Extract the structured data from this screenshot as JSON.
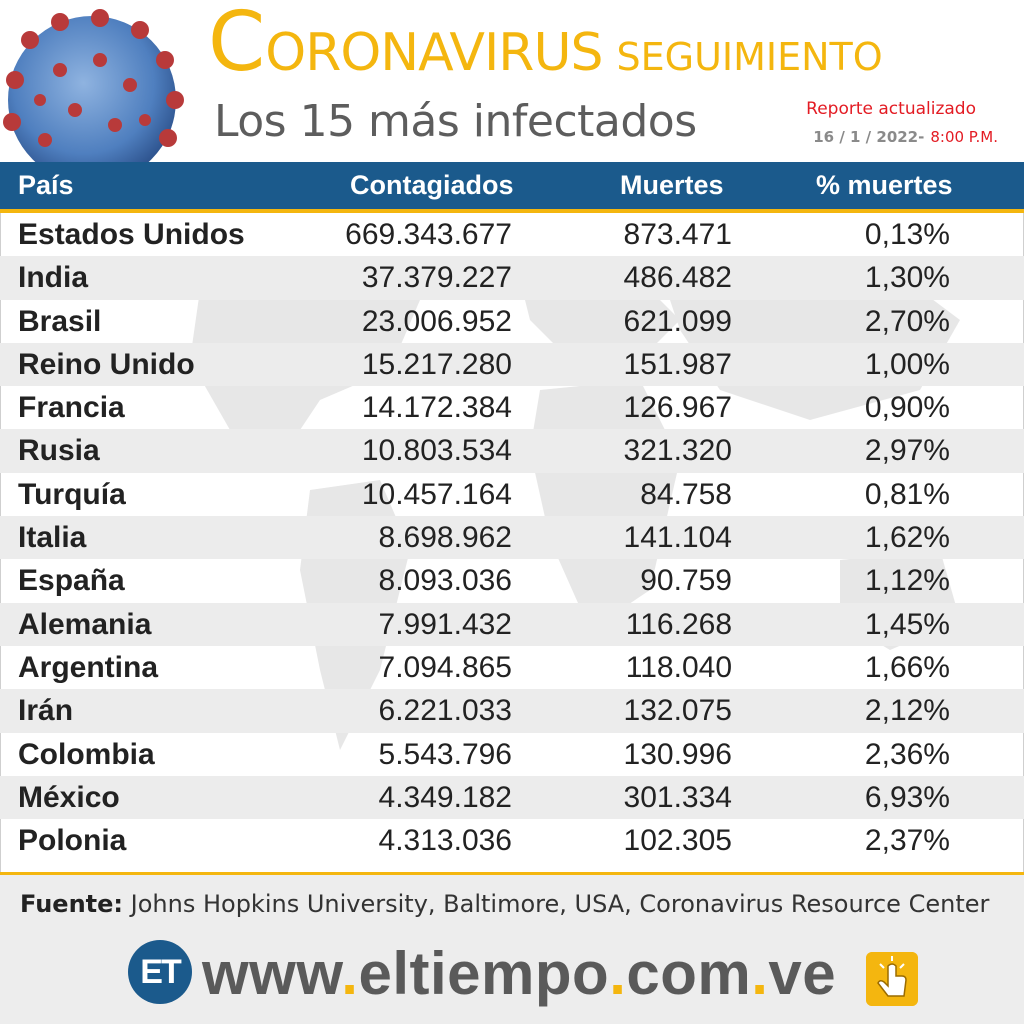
{
  "header": {
    "title_initial": "C",
    "title_rest": "ORONAVIRUS",
    "title_tail": "SEGUIMIENTO",
    "subtitle": "Los 15 más infectados",
    "report_label": "Reporte actualizado",
    "report_date": "16 / 1 / 2022-",
    "report_time": "8:00 P.M."
  },
  "table": {
    "columns": [
      "País",
      "Contagiados",
      "Muertes",
      "% muertes"
    ],
    "rows": [
      {
        "country": "Estados Unidos",
        "cases": "669.343.677",
        "deaths": "873.471",
        "pct": "0,13%"
      },
      {
        "country": "India",
        "cases": "37.379.227",
        "deaths": "486.482",
        "pct": "1,30%"
      },
      {
        "country": "Brasil",
        "cases": "23.006.952",
        "deaths": "621.099",
        "pct": "2,70%"
      },
      {
        "country": "Reino Unido",
        "cases": "15.217.280",
        "deaths": "151.987",
        "pct": "1,00%"
      },
      {
        "country": "Francia",
        "cases": "14.172.384",
        "deaths": "126.967",
        "pct": "0,90%"
      },
      {
        "country": "Rusia",
        "cases": "10.803.534",
        "deaths": "321.320",
        "pct": "2,97%"
      },
      {
        "country": "Turquía",
        "cases": "10.457.164",
        "deaths": "84.758",
        "pct": "0,81%"
      },
      {
        "country": "Italia",
        "cases": "8.698.962",
        "deaths": "141.104",
        "pct": "1,62%"
      },
      {
        "country": "España",
        "cases": "8.093.036",
        "deaths": "90.759",
        "pct": "1,12%"
      },
      {
        "country": "Alemania",
        "cases": "7.991.432",
        "deaths": "116.268",
        "pct": "1,45%"
      },
      {
        "country": "Argentina",
        "cases": "7.094.865",
        "deaths": "118.040",
        "pct": "1,66%"
      },
      {
        "country": "Irán",
        "cases": "6.221.033",
        "deaths": "132.075",
        "pct": "2,12%"
      },
      {
        "country": "Colombia",
        "cases": "5.543.796",
        "deaths": "130.996",
        "pct": "2,36%"
      },
      {
        "country": "México",
        "cases": "4.349.182",
        "deaths": "301.334",
        "pct": "6,93%"
      },
      {
        "country": "Polonia",
        "cases": "4.313.036",
        "deaths": "102.305",
        "pct": "2,37%"
      }
    ]
  },
  "source": {
    "label": "Fuente:",
    "text": "Johns Hopkins University, Baltimore, USA, Coronavirus Resource Center"
  },
  "footer": {
    "logo_text": "ET",
    "url_parts": [
      "www",
      ".",
      "eltiempo",
      ".",
      "com",
      ".",
      "ve"
    ]
  },
  "colors": {
    "accent_yellow": "#f4b60f",
    "header_blue": "#1b5a8c",
    "alert_red": "#e31b23",
    "row_stripe": "#ececec"
  },
  "icons": [
    "coronavirus-illustration",
    "world-map-watermark",
    "et-logo",
    "hand-click-icon"
  ]
}
